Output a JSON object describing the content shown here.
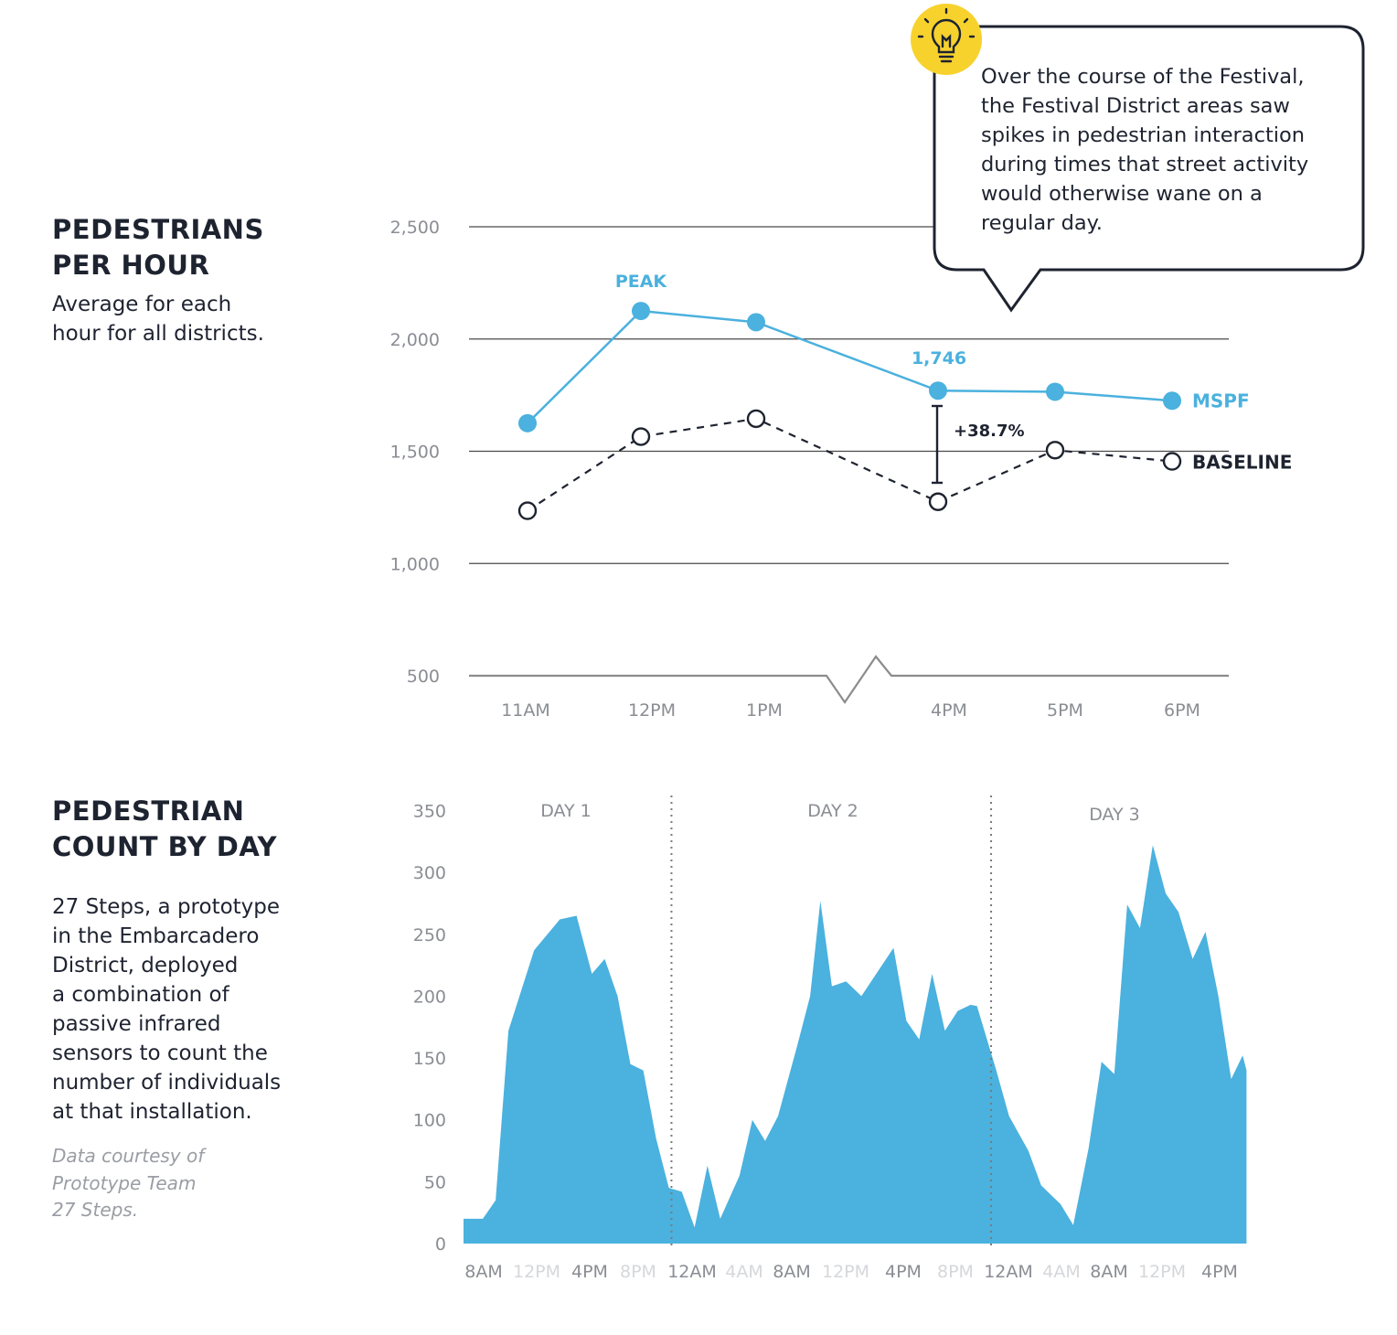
{
  "section1": {
    "title_line1": "PEDESTRIANS",
    "title_line2": "PER HOUR",
    "desc_line1": "Average for each",
    "desc_line2": "hour for all districts."
  },
  "section2": {
    "title_line1": "PEDESTRIAN",
    "title_line2": "COUNT BY DAY",
    "desc_lines": [
      "27 Steps, a prototype",
      "in the Embarcadero",
      "District, deployed",
      "a combination of",
      "passive infrared",
      "sensors to count the",
      "number of individuals",
      "at that installation."
    ],
    "credit_lines": [
      "Data courtesy of",
      "Prototype Team",
      "27 Steps."
    ]
  },
  "callout": {
    "icon": "lightbulb-icon",
    "lines": [
      "Over the course of the Festival,",
      "the Festival District areas saw",
      "spikes in pedestrian interaction",
      "during times that street activity",
      "would otherwise wane on a",
      "regular day."
    ]
  },
  "colors": {
    "mspf": "#4bb1de",
    "baseline": "#1e2330",
    "area": "#4bb1de",
    "callout_icon": "#f7d22d",
    "grid": "#555555",
    "axis_text": "#8a8d93",
    "muted_tick": "#d5d7da"
  },
  "chart_data": [
    {
      "type": "line",
      "title": "PEDESTRIANS PER HOUR",
      "categories": [
        "11AM",
        "12PM",
        "1PM",
        "4PM",
        "5PM",
        "6PM"
      ],
      "ylim": [
        500,
        2500
      ],
      "yticks": [
        "2,500",
        "2,000",
        "1,500",
        "1,000",
        "500"
      ],
      "ytick_values": [
        2500,
        2000,
        1500,
        1000,
        500
      ],
      "axis_break": "between 1PM and 4PM",
      "grid": true,
      "series": [
        {
          "name": "MSPF",
          "values": [
            1625,
            2125,
            2075,
            1770,
            1765,
            1725
          ],
          "style": "solid, filled markers"
        },
        {
          "name": "BASELINE",
          "values": [
            1235,
            1565,
            1645,
            1275,
            1505,
            1455
          ],
          "style": "dashed, hollow markers"
        }
      ],
      "annotations": {
        "peak": "PEAK",
        "value_label": "1,746",
        "change": "+38.7%"
      }
    },
    {
      "type": "area",
      "title": "PEDESTRIAN COUNT BY DAY",
      "ylim": [
        0,
        350
      ],
      "yticks": [
        "350",
        "300",
        "250",
        "200",
        "150",
        "100",
        "50",
        "0"
      ],
      "ytick_values": [
        350,
        300,
        250,
        200,
        150,
        100,
        50,
        0
      ],
      "xticks": [
        {
          "label": "8AM",
          "muted": false,
          "hour": 0
        },
        {
          "label": "12PM",
          "muted": true,
          "hour": 4
        },
        {
          "label": "4PM",
          "muted": false,
          "hour": 8
        },
        {
          "label": "8PM",
          "muted": true,
          "hour": 12
        },
        {
          "label": "12AM",
          "muted": false,
          "hour": 16
        },
        {
          "label": "4AM",
          "muted": true,
          "hour": 20
        },
        {
          "label": "8AM",
          "muted": false,
          "hour": 24
        },
        {
          "label": "12PM",
          "muted": true,
          "hour": 28
        },
        {
          "label": "4PM",
          "muted": false,
          "hour": 32
        },
        {
          "label": "8PM",
          "muted": true,
          "hour": 36
        },
        {
          "label": "12AM",
          "muted": false,
          "hour": 40
        },
        {
          "label": "4AM",
          "muted": true,
          "hour": 44
        },
        {
          "label": "8AM",
          "muted": false,
          "hour": 48
        },
        {
          "label": "12PM",
          "muted": true,
          "hour": 52
        },
        {
          "label": "4PM",
          "muted": false,
          "hour": 56
        }
      ],
      "days": [
        {
          "label": "DAY 1",
          "center_hour": 9.5
        },
        {
          "label": "DAY 2",
          "center_hour": 34.5
        },
        {
          "label": "DAY 3",
          "center_hour": 59.5
        }
      ],
      "day_dividers_hour": [
        16.2,
        41.1
      ],
      "x_max_hour": 60.2,
      "series": [
        {
          "values": [
            [
              0,
              20
            ],
            [
              1.5,
              20
            ],
            [
              2.5,
              35
            ],
            [
              3.5,
              172
            ],
            [
              5.5,
              237
            ],
            [
              7.5,
              262
            ],
            [
              8.8,
              265
            ],
            [
              10,
              218
            ],
            [
              11,
              230
            ],
            [
              12,
              200
            ],
            [
              13,
              145
            ],
            [
              14,
              140
            ],
            [
              15,
              85
            ],
            [
              16,
              45
            ],
            [
              17,
              42
            ],
            [
              18,
              13
            ],
            [
              19,
              63
            ],
            [
              20,
              20
            ],
            [
              21.5,
              55
            ],
            [
              22.5,
              100
            ],
            [
              23.5,
              83
            ],
            [
              24.5,
              103
            ],
            [
              26,
              160
            ],
            [
              27,
              200
            ],
            [
              27.8,
              277
            ],
            [
              28.7,
              208
            ],
            [
              29.8,
              212
            ],
            [
              31,
              200
            ],
            [
              33.5,
              239
            ],
            [
              34.5,
              180
            ],
            [
              35.5,
              165
            ],
            [
              36.5,
              218
            ],
            [
              37.5,
              172
            ],
            [
              38.5,
              188
            ],
            [
              39.5,
              193
            ],
            [
              40,
              192
            ],
            [
              41.5,
              140
            ],
            [
              42.5,
              103
            ],
            [
              44,
              75
            ],
            [
              45,
              47
            ],
            [
              46.5,
              32
            ],
            [
              47.5,
              15
            ],
            [
              48.7,
              77
            ],
            [
              49.7,
              147
            ],
            [
              50.7,
              137
            ],
            [
              51.7,
              274
            ],
            [
              52.7,
              255
            ],
            [
              53.7,
              322
            ],
            [
              54.7,
              283
            ],
            [
              55.7,
              268
            ],
            [
              56.8,
              230
            ],
            [
              57.8,
              252
            ],
            [
              58.8,
              200
            ],
            [
              59.8,
              133
            ],
            [
              60.7,
              152
            ],
            [
              61,
              140
            ]
          ]
        }
      ]
    }
  ]
}
